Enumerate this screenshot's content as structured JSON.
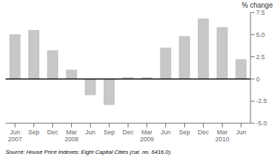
{
  "chart_data": {
    "type": "bar",
    "ylabel": "% change",
    "annotations": [
      "Source: House Price Indexes: Eight Capital Cities (cat.  no.  6416.0)."
    ],
    "categories": [
      "Jun\n2007",
      "Sep",
      "Dec",
      "Mar\n2008",
      "Jun",
      "Sep",
      "Dec",
      "Mar\n2009",
      "Jun",
      "Sep",
      "Dec",
      "Mar\n2010",
      "Jun"
    ],
    "values": [
      5.0,
      5.5,
      3.2,
      1.0,
      -1.8,
      -2.9,
      0.15,
      0.15,
      3.5,
      4.8,
      6.8,
      5.8,
      2.2
    ],
    "color": "#c8c8c8",
    "ylim": [
      -5.0,
      7.5
    ],
    "yticks": [
      {
        "value": -5.0,
        "label": "-5.0"
      },
      -2.5,
      0,
      2.5,
      {
        "value": 5.0,
        "label": "5.0"
      },
      7.5
    ],
    "grid": false
  }
}
